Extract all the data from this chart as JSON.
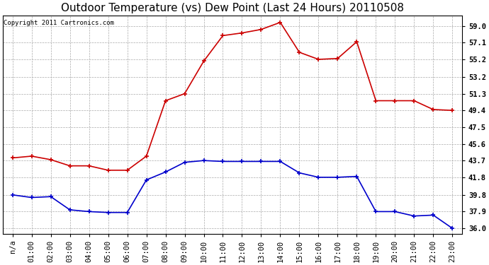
{
  "title": "Outdoor Temperature (vs) Dew Point (Last 24 Hours) 20110508",
  "copyright": "Copyright 2011 Cartronics.com",
  "x_labels": [
    "n/a",
    "01:00",
    "02:00",
    "03:00",
    "04:00",
    "05:00",
    "06:00",
    "07:00",
    "08:00",
    "09:00",
    "10:00",
    "11:00",
    "12:00",
    "13:00",
    "14:00",
    "15:00",
    "16:00",
    "17:00",
    "18:00",
    "19:00",
    "20:00",
    "21:00",
    "22:00",
    "23:00"
  ],
  "temp_data": [
    44.0,
    44.2,
    43.8,
    43.1,
    43.1,
    42.6,
    42.6,
    44.2,
    50.5,
    51.3,
    55.0,
    57.9,
    58.2,
    58.6,
    59.4,
    56.0,
    55.2,
    55.3,
    57.2,
    50.5,
    50.5,
    50.5,
    49.5,
    49.4
  ],
  "dew_data": [
    39.8,
    39.5,
    39.6,
    38.1,
    37.9,
    37.8,
    37.8,
    41.5,
    42.4,
    43.5,
    43.7,
    43.6,
    43.6,
    43.6,
    43.6,
    42.3,
    41.8,
    41.8,
    41.9,
    37.9,
    37.9,
    37.4,
    37.5,
    36.0
  ],
  "temp_color": "#cc0000",
  "dew_color": "#0000cc",
  "bg_color": "#ffffff",
  "plot_bg_color": "#ffffff",
  "grid_color": "#aaaaaa",
  "yticks": [
    36.0,
    37.9,
    39.8,
    41.8,
    43.7,
    45.6,
    47.5,
    49.4,
    51.3,
    53.2,
    55.2,
    57.1,
    59.0
  ],
  "ylim": [
    35.4,
    60.2
  ],
  "title_fontsize": 11,
  "tick_fontsize": 7.5,
  "copyright_fontsize": 6.5
}
